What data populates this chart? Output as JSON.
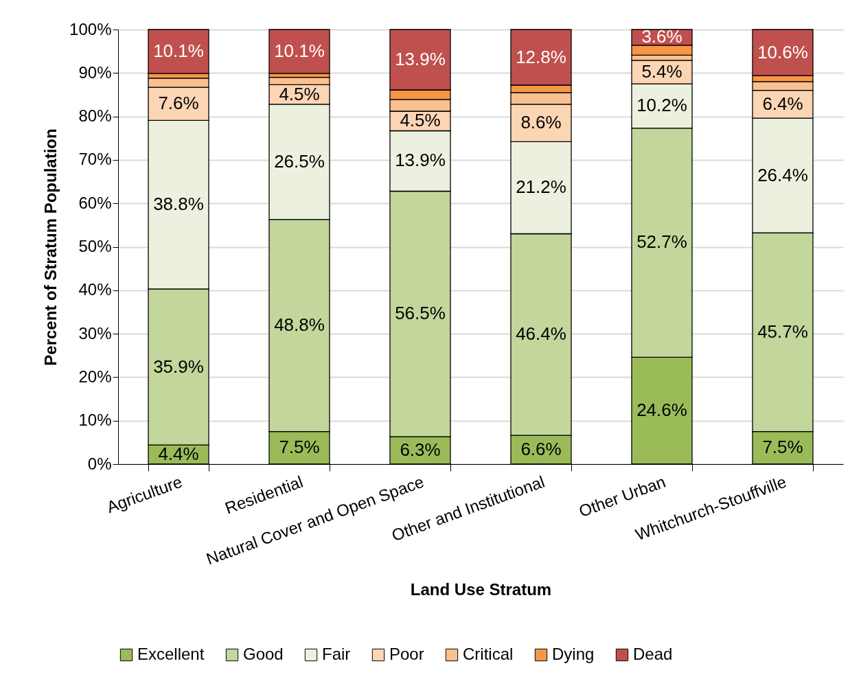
{
  "chart_data": {
    "type": "bar",
    "stacked": true,
    "xlabel": "Land Use Stratum",
    "ylabel": "Percent of Stratum Population",
    "categories": [
      "Agriculture",
      "Residential",
      "Natural Cover and Open Space",
      "Other and Institutional",
      "Other Urban",
      "Whitchurch-Stouffville"
    ],
    "series": [
      {
        "name": "Excellent",
        "color": "#9bbb59",
        "values": [
          4.4,
          7.5,
          6.3,
          6.6,
          24.6,
          7.5
        ],
        "value_labels": [
          "4.4%",
          "7.5%",
          "6.3%",
          "6.6%",
          "24.6%",
          "7.5%"
        ]
      },
      {
        "name": "Good",
        "color": "#c3d69b",
        "values": [
          35.9,
          48.8,
          56.5,
          46.4,
          52.7,
          45.7
        ],
        "value_labels": [
          "35.9%",
          "48.8%",
          "56.5%",
          "46.4%",
          "52.7%",
          "45.7%"
        ]
      },
      {
        "name": "Fair",
        "color": "#ebf1de",
        "values": [
          38.8,
          26.5,
          13.9,
          21.2,
          10.2,
          26.4
        ],
        "value_labels": [
          "38.8%",
          "26.5%",
          "13.9%",
          "21.2%",
          "10.2%",
          "26.4%"
        ]
      },
      {
        "name": "Poor",
        "color": "#fcd5b5",
        "values": [
          7.6,
          4.5,
          4.5,
          8.6,
          5.4,
          6.4
        ],
        "value_labels": [
          "7.6%",
          "4.5%",
          "4.5%",
          "8.6%",
          "5.4%",
          "6.4%"
        ]
      },
      {
        "name": "Critical",
        "color": "#fac090",
        "values": [
          2.1,
          1.7,
          2.7,
          2.7,
          1.2,
          2.0
        ],
        "value_labels": [
          null,
          null,
          null,
          null,
          null,
          null
        ]
      },
      {
        "name": "Dying",
        "color": "#f79646",
        "values": [
          1.1,
          0.9,
          2.2,
          1.7,
          2.3,
          1.4
        ],
        "value_labels": [
          null,
          null,
          null,
          null,
          null,
          null
        ]
      },
      {
        "name": "Dead",
        "color": "#c0504d",
        "values": [
          10.1,
          10.1,
          13.9,
          12.8,
          3.6,
          10.6
        ],
        "value_labels": [
          "10.1%",
          "10.1%",
          "13.9%",
          "12.8%",
          "3.6%",
          "10.6%"
        ]
      }
    ],
    "ylim": [
      0,
      100
    ],
    "yticks": [
      {
        "value": 0,
        "label": "0%"
      },
      {
        "value": 10,
        "label": "10%"
      },
      {
        "value": 20,
        "label": "20%"
      },
      {
        "value": 30,
        "label": "30%"
      },
      {
        "value": 40,
        "label": "40%"
      },
      {
        "value": 50,
        "label": "50%"
      },
      {
        "value": 60,
        "label": "60%"
      },
      {
        "value": 70,
        "label": "70%"
      },
      {
        "value": 80,
        "label": "80%"
      },
      {
        "value": 90,
        "label": "90%"
      },
      {
        "value": 100,
        "label": "100%"
      }
    ],
    "grid": "y",
    "legend": "bottom"
  }
}
